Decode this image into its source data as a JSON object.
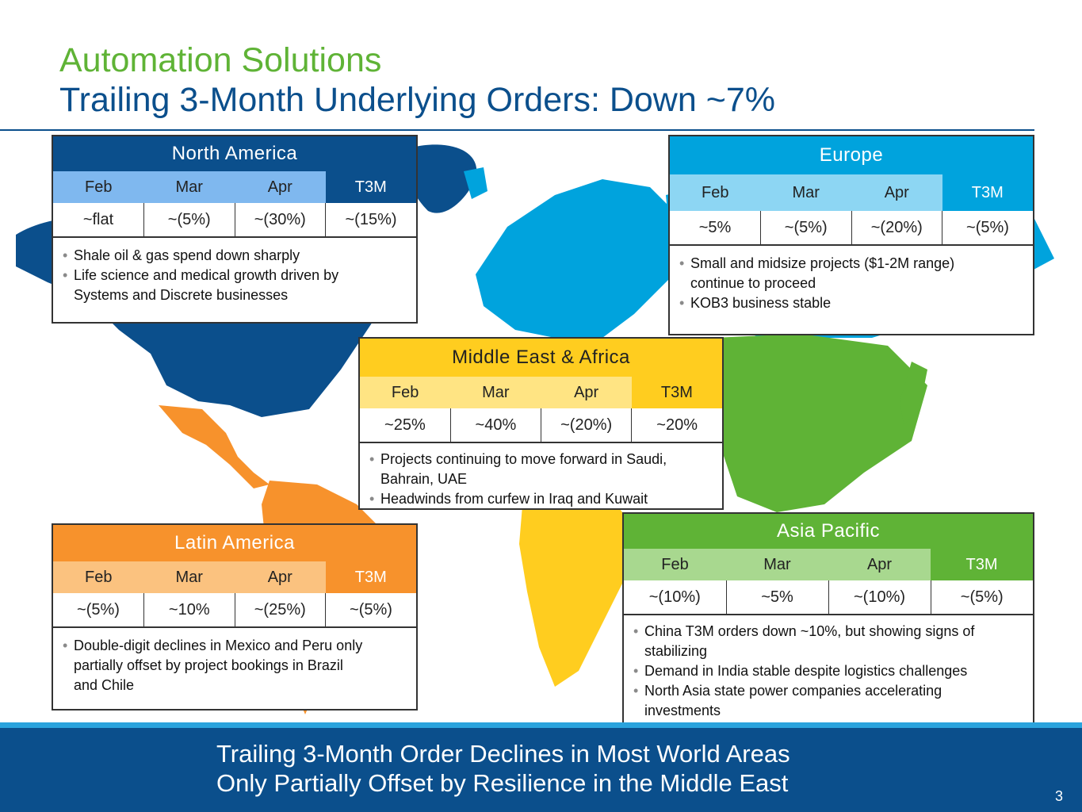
{
  "title": "Automation Solutions",
  "subtitle": "Trailing 3-Month Underlying Orders: Down ~7%",
  "colors": {
    "na": "#0b4f8c",
    "eu": "#00a3dd",
    "mea": "#ffcd1f",
    "la": "#f7922c",
    "ap": "#5fb336"
  },
  "regions": {
    "na": {
      "name": "North America",
      "months": [
        "Feb",
        "Mar",
        "Apr",
        "T3M"
      ],
      "values": [
        "~flat",
        "~(5%)",
        "~(30%)",
        "~(15%)"
      ],
      "bullets": [
        "Shale oil & gas spend down sharply",
        "Life science and medical growth driven by",
        "Systems and Discrete businesses"
      ]
    },
    "eu": {
      "name": "Europe",
      "months": [
        "Feb",
        "Mar",
        "Apr",
        "T3M"
      ],
      "values": [
        "~5%",
        "~(5%)",
        "~(20%)",
        "~(5%)"
      ],
      "bullets": [
        "Small and midsize projects ($1-2M range)",
        "continue to proceed",
        "KOB3 business stable"
      ]
    },
    "mea": {
      "name": "Middle East & Africa",
      "months": [
        "Feb",
        "Mar",
        "Apr",
        "T3M"
      ],
      "values": [
        "~25%",
        "~40%",
        "~(20%)",
        "~20%"
      ],
      "bullets": [
        "Projects continuing to move forward in Saudi,",
        "Bahrain, UAE",
        "Headwinds from curfew in Iraq and Kuwait"
      ]
    },
    "la": {
      "name": "Latin America",
      "months": [
        "Feb",
        "Mar",
        "Apr",
        "T3M"
      ],
      "values": [
        "~(5%)",
        "~10%",
        "~(25%)",
        "~(5%)"
      ],
      "bullets": [
        "Double-digit declines in Mexico and Peru only",
        "partially offset by project bookings in Brazil",
        "and Chile"
      ]
    },
    "ap": {
      "name": "Asia Pacific",
      "months": [
        "Feb",
        "Mar",
        "Apr",
        "T3M"
      ],
      "values": [
        "~(10%)",
        "~5%",
        "~(10%)",
        "~(5%)"
      ],
      "bullets": [
        "China T3M orders down ~10%, but showing signs of",
        "stabilizing",
        "Demand in India stable despite logistics challenges",
        "North Asia state power companies accelerating",
        "investments"
      ]
    }
  },
  "footer": {
    "line1": "Trailing 3-Month Order Declines in Most World Areas",
    "line2": "Only Partially Offset by Resilience in the Middle East"
  },
  "page_number": "3"
}
